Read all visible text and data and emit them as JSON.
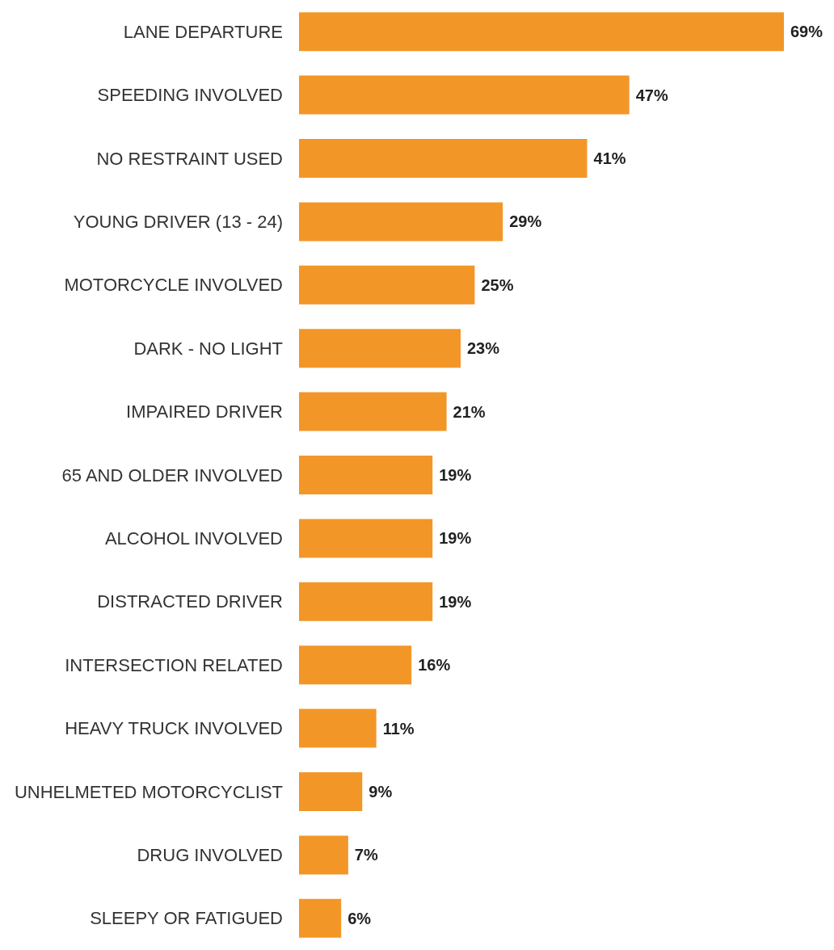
{
  "chart_data": {
    "type": "bar",
    "orientation": "horizontal",
    "categories": [
      "LANE DEPARTURE",
      "SPEEDING INVOLVED",
      "NO RESTRAINT USED",
      "YOUNG DRIVER (13 - 24)",
      "MOTORCYCLE INVOLVED",
      "DARK - NO LIGHT",
      "IMPAIRED DRIVER",
      "65 AND OLDER INVOLVED",
      "ALCOHOL INVOLVED",
      "DISTRACTED DRIVER",
      "INTERSECTION RELATED",
      "HEAVY TRUCK INVOLVED",
      "UNHELMETED MOTORCYCLIST",
      "DRUG INVOLVED",
      "SLEEPY OR FATIGUED"
    ],
    "values": [
      69,
      47,
      41,
      29,
      25,
      23,
      21,
      19,
      19,
      19,
      16,
      11,
      9,
      7,
      6
    ],
    "value_labels": [
      "69%",
      "47%",
      "41%",
      "29%",
      "25%",
      "23%",
      "21%",
      "19%",
      "19%",
      "19%",
      "16%",
      "11%",
      "9%",
      "7%",
      "6%"
    ],
    "color": "#f39628"
  }
}
